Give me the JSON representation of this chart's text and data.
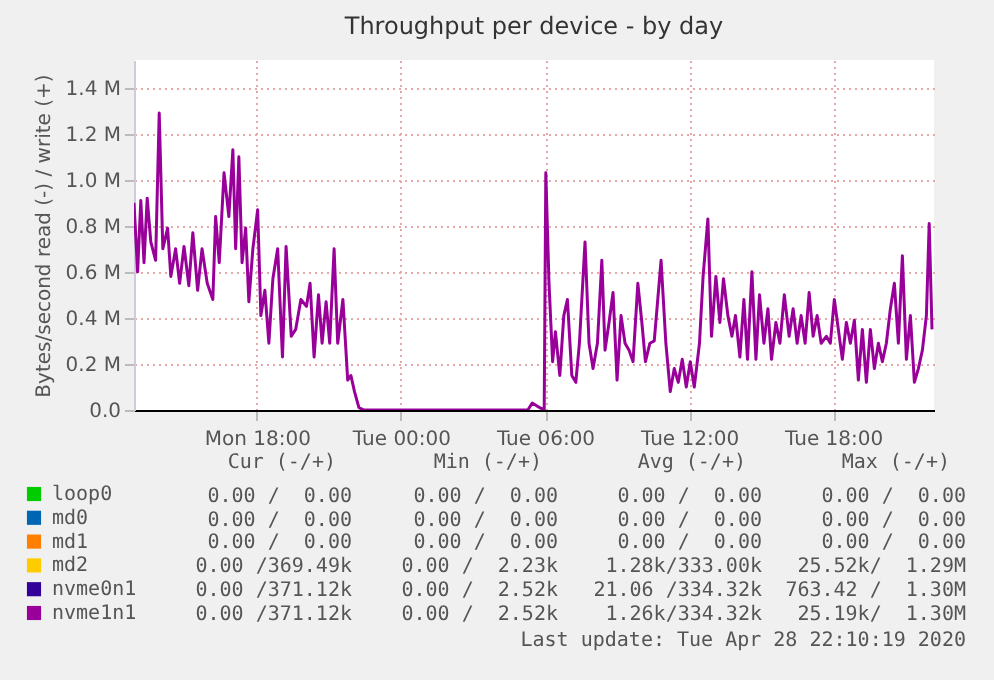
{
  "chart_data": {
    "type": "line",
    "title": "Throughput per device - by day",
    "ylabel": "Bytes/second read (-) / write (+)",
    "xlim": [
      "2020-04-27T12:53",
      "2020-04-28T22:12"
    ],
    "xticks": [
      {
        "value": "2020-04-27T18:00",
        "label": "Mon 18:00"
      },
      {
        "value": "2020-04-28T00:00",
        "label": "Tue 00:00"
      },
      {
        "value": "2020-04-28T06:00",
        "label": "Tue 06:00"
      },
      {
        "value": "2020-04-28T12:00",
        "label": "Tue 12:00"
      },
      {
        "value": "2020-04-28T18:00",
        "label": "Tue 18:00"
      }
    ],
    "ylim": [
      0,
      1.52
    ],
    "yticks": [
      {
        "value": 0,
        "label": "0.0"
      },
      {
        "value": 0.2,
        "label": "0.2 M"
      },
      {
        "value": 0.4,
        "label": "0.4 M"
      },
      {
        "value": 0.6,
        "label": "0.6 M"
      },
      {
        "value": 0.8,
        "label": "0.8 M"
      },
      {
        "value": 1.0,
        "label": "1.0 M"
      },
      {
        "value": 1.2,
        "label": "1.2 M"
      },
      {
        "value": 1.4,
        "label": "1.4 M"
      }
    ],
    "grid": true,
    "legend": "bottom left",
    "series": [
      {
        "name": "loop0",
        "color": "#00cc00"
      },
      {
        "name": "md0",
        "color": "#0066b3"
      },
      {
        "name": "md1",
        "color": "#ff8000"
      },
      {
        "name": "md2",
        "color": "#ffcc00"
      },
      {
        "name": "nvme0n1",
        "color": "#330099"
      },
      {
        "name": "nvme1n1",
        "color": "#990099",
        "x": [
          "2020-04-27T12:53",
          "2020-04-27T13:02",
          "2020-04-27T13:10",
          "2020-04-27T13:18",
          "2020-04-27T13:26",
          "2020-04-27T13:35",
          "2020-04-27T13:47",
          "2020-04-27T13:56",
          "2020-04-27T14:05",
          "2020-04-27T14:17",
          "2020-04-27T14:25",
          "2020-04-27T14:37",
          "2020-04-27T14:47",
          "2020-04-27T14:58",
          "2020-04-27T15:10",
          "2020-04-27T15:20",
          "2020-04-27T15:32",
          "2020-04-27T15:43",
          "2020-04-27T15:56",
          "2020-04-27T16:10",
          "2020-04-27T16:17",
          "2020-04-27T16:26",
          "2020-04-27T16:38",
          "2020-04-27T16:50",
          "2020-04-27T17:00",
          "2020-04-27T17:07",
          "2020-04-27T17:15",
          "2020-04-27T17:23",
          "2020-04-27T17:32",
          "2020-04-27T17:40",
          "2020-04-27T17:50",
          "2020-04-27T18:02",
          "2020-04-27T18:10",
          "2020-04-27T18:20",
          "2020-04-27T18:30",
          "2020-04-27T18:40",
          "2020-04-27T18:52",
          "2020-04-27T19:04",
          "2020-04-27T19:13",
          "2020-04-27T19:26",
          "2020-04-27T19:37",
          "2020-04-27T19:50",
          "2020-04-27T20:04",
          "2020-04-27T20:13",
          "2020-04-27T20:23",
          "2020-04-27T20:34",
          "2020-04-27T20:43",
          "2020-04-27T20:53",
          "2020-04-27T21:02",
          "2020-04-27T21:13",
          "2020-04-27T21:22",
          "2020-04-27T21:35",
          "2020-04-27T21:47",
          "2020-04-27T21:55",
          "2020-04-27T22:04",
          "2020-04-27T22:15",
          "2020-04-27T22:28",
          "2020-04-28T05:17",
          "2020-04-28T05:28",
          "2020-04-28T05:47",
          "2020-04-28T05:58",
          "2020-04-28T06:02",
          "2020-04-28T06:10",
          "2020-04-28T06:19",
          "2020-04-28T06:26",
          "2020-04-28T06:37",
          "2020-04-28T06:47",
          "2020-04-28T06:56",
          "2020-04-28T07:07",
          "2020-04-28T07:17",
          "2020-04-28T07:26",
          "2020-04-28T07:40",
          "2020-04-28T07:50",
          "2020-04-28T08:00",
          "2020-04-28T08:11",
          "2020-04-28T08:22",
          "2020-04-28T08:30",
          "2020-04-28T08:40",
          "2020-04-28T08:50",
          "2020-04-28T09:00",
          "2020-04-28T09:10",
          "2020-04-28T09:20",
          "2020-04-28T09:30",
          "2020-04-28T09:40",
          "2020-04-28T09:52",
          "2020-04-28T10:02",
          "2020-04-28T10:11",
          "2020-04-28T10:22",
          "2020-04-28T10:33",
          "2020-04-28T10:50",
          "2020-04-28T11:02",
          "2020-04-28T11:13",
          "2020-04-28T11:23",
          "2020-04-28T11:33",
          "2020-04-28T11:43",
          "2020-04-28T11:53",
          "2020-04-28T12:03",
          "2020-04-28T12:13",
          "2020-04-28T12:26",
          "2020-04-28T12:35",
          "2020-04-28T12:47",
          "2020-04-28T12:56",
          "2020-04-28T13:07",
          "2020-04-28T13:17",
          "2020-04-28T13:26",
          "2020-04-28T13:37",
          "2020-04-28T13:47",
          "2020-04-28T13:56",
          "2020-04-28T14:07",
          "2020-04-28T14:17",
          "2020-04-28T14:26",
          "2020-04-28T14:37",
          "2020-04-28T14:47",
          "2020-04-28T14:56",
          "2020-04-28T15:07",
          "2020-04-28T15:17",
          "2020-04-28T15:26",
          "2020-04-28T15:37",
          "2020-04-28T15:47",
          "2020-04-28T15:58",
          "2020-04-28T16:10",
          "2020-04-28T16:20",
          "2020-04-28T16:30",
          "2020-04-28T16:40",
          "2020-04-28T16:50",
          "2020-04-28T17:00",
          "2020-04-28T17:10",
          "2020-04-28T17:20",
          "2020-04-28T17:30",
          "2020-04-28T17:43",
          "2020-04-28T17:53",
          "2020-04-28T18:03",
          "2020-04-28T18:13",
          "2020-04-28T18:23",
          "2020-04-28T18:33",
          "2020-04-28T18:43",
          "2020-04-28T18:53",
          "2020-04-28T19:03",
          "2020-04-28T19:13",
          "2020-04-28T19:23",
          "2020-04-28T19:33",
          "2020-04-28T19:43",
          "2020-04-28T19:53",
          "2020-04-28T20:03",
          "2020-04-28T20:13",
          "2020-04-28T20:23",
          "2020-04-28T20:33",
          "2020-04-28T20:43",
          "2020-04-28T20:53",
          "2020-04-28T21:03",
          "2020-04-28T21:13",
          "2020-04-28T21:23",
          "2020-04-28T21:33",
          "2020-04-28T21:43",
          "2020-04-28T21:53",
          "2020-04-28T22:00",
          "2020-04-28T22:07"
        ],
        "values": [
          0.9,
          0.6,
          0.91,
          0.64,
          0.92,
          0.73,
          0.65,
          1.29,
          0.7,
          0.79,
          0.58,
          0.7,
          0.55,
          0.71,
          0.54,
          0.77,
          0.52,
          0.7,
          0.55,
          0.48,
          0.84,
          0.64,
          1.03,
          0.84,
          1.13,
          0.7,
          1.1,
          0.64,
          0.79,
          0.47,
          0.7,
          0.87,
          0.41,
          0.52,
          0.29,
          0.57,
          0.7,
          0.23,
          0.71,
          0.32,
          0.35,
          0.48,
          0.45,
          0.55,
          0.23,
          0.5,
          0.29,
          0.47,
          0.29,
          0.7,
          0.29,
          0.48,
          0.13,
          0.15,
          0.08,
          0.01,
          0,
          0,
          0.03,
          0.01,
          0,
          1.03,
          0.55,
          0.21,
          0.34,
          0.15,
          0.41,
          0.48,
          0.15,
          0.12,
          0.29,
          0.73,
          0.29,
          0.18,
          0.29,
          0.65,
          0.26,
          0.38,
          0.51,
          0.13,
          0.41,
          0.29,
          0.26,
          0.21,
          0.55,
          0.38,
          0.21,
          0.29,
          0.3,
          0.65,
          0.29,
          0.08,
          0.18,
          0.12,
          0.22,
          0.1,
          0.21,
          0.1,
          0.29,
          0.58,
          0.83,
          0.32,
          0.58,
          0.38,
          0.57,
          0.41,
          0.32,
          0.41,
          0.23,
          0.48,
          0.22,
          0.6,
          0.22,
          0.5,
          0.29,
          0.44,
          0.22,
          0.38,
          0.29,
          0.5,
          0.32,
          0.44,
          0.29,
          0.41,
          0.29,
          0.51,
          0.32,
          0.41,
          0.29,
          0.32,
          0.29,
          0.48,
          0.35,
          0.22,
          0.38,
          0.29,
          0.39,
          0.13,
          0.35,
          0.12,
          0.35,
          0.18,
          0.29,
          0.21,
          0.29,
          0.44,
          0.55,
          0.29,
          0.67,
          0.22,
          0.41,
          0.12,
          0.18,
          0.26,
          0.41,
          0.81,
          0.35
        ]
      }
    ],
    "annotations": [
      "Cur (-/+)",
      "Min (-/+)",
      "Avg (-/+)",
      "Max (-/+)",
      "0.00 /  0.00",
      "0.00 /  0.00",
      "0.00 /  0.00",
      "0.00 /  0.00",
      "0.00 /  0.00",
      "0.00 /  0.00",
      "0.00 /  0.00",
      "0.00 /  0.00",
      "0.00 /  0.00",
      "0.00 /  0.00",
      "0.00 /  0.00",
      "0.00 /  0.00",
      "0.00 /369.49k",
      "0.00 /  2.23k",
      "1.28k/333.00k",
      "25.52k/  1.29M",
      "0.00 /371.12k",
      "0.00 /  2.52k",
      "21.06 /334.32k",
      "763.42 /  1.30M",
      "0.00 /371.12k",
      "0.00 /  2.52k",
      "1.26k/334.32k",
      "25.19k/  1.30M",
      "Last update: Tue Apr 28 22:10:19 2020"
    ]
  }
}
